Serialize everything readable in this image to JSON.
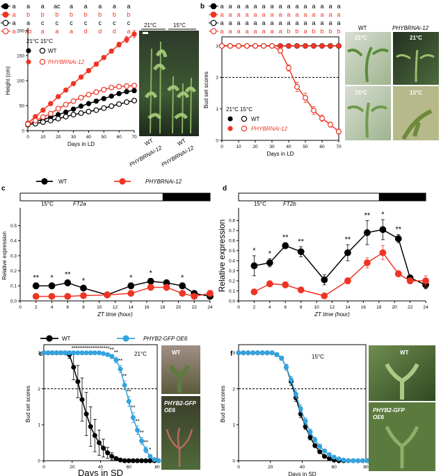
{
  "colors": {
    "black": "#000000",
    "red": "#ee3524",
    "blue": "#35a3de",
    "gray": "#666666"
  },
  "photos": {
    "a": {
      "left_temp": "21°C",
      "right_temp": "15°C",
      "caption_wt1": "WT",
      "caption_line1": "PHYBRNAi-12",
      "caption_wt2": "WT",
      "caption_line2": "PHYBRNAi-12"
    },
    "b": {
      "col1": "WT",
      "col2": "PHYBRNAi-12",
      "t_top_left": "21°C",
      "t_top_right": "21°C",
      "t_bottom_left": "15°C",
      "t_bottom_right": "15°C"
    },
    "e": {
      "top": "WT",
      "bottom_line1": "PHYB2-GFP",
      "bottom_line2": "OE6"
    },
    "f": {
      "top": "WT",
      "bottom_line1": "PHYB2-GFP",
      "bottom_line2": "OE6"
    }
  },
  "chart_data": [
    {
      "id": "a",
      "panel_label": "a",
      "type": "line",
      "xlabel": "Days in LD",
      "ylabel": "Height (cm)",
      "xlim": [
        0,
        70
      ],
      "ylim": [
        0,
        200
      ],
      "xticks": [
        0,
        10,
        20,
        30,
        40,
        50,
        60,
        70
      ],
      "yticks": [
        0,
        50,
        100,
        150,
        200
      ],
      "legend": {
        "header": "21°C 15°C",
        "entries": [
          "WT",
          "PHYBRNAi-12"
        ]
      },
      "letter_rows": [
        [
          "a",
          "a",
          "a",
          "ac",
          "a",
          "a",
          "a",
          "a",
          "a"
        ],
        [
          "a",
          "b",
          "b",
          "b",
          "b",
          "b",
          "b",
          "b",
          "b"
        ],
        [
          "a",
          "a",
          "c",
          "c",
          "c",
          "c",
          "c",
          "c",
          "c"
        ],
        [
          "a",
          "ab",
          "a",
          "a",
          "a",
          "d",
          "d",
          "d",
          "a"
        ]
      ],
      "x": [
        0,
        5,
        10,
        15,
        20,
        25,
        30,
        35,
        40,
        45,
        50,
        55,
        60,
        65,
        70
      ],
      "series": [
        {
          "name": "WT 21°C",
          "color": "black",
          "fill": true,
          "values": [
            14,
            18,
            22,
            27,
            32,
            37,
            43,
            49,
            54,
            59,
            64,
            69,
            74,
            78,
            80
          ],
          "err": [
            2,
            2,
            2,
            2,
            2,
            2,
            3,
            3,
            3,
            3,
            3,
            3,
            3,
            3,
            4
          ]
        },
        {
          "name": "WT 15°C",
          "color": "black",
          "fill": false,
          "values": [
            12,
            14,
            17,
            20,
            24,
            28,
            32,
            35,
            38,
            41,
            45,
            49,
            53,
            57,
            60
          ],
          "err": [
            2,
            2,
            2,
            2,
            2,
            2,
            2,
            2,
            2,
            3,
            3,
            3,
            3,
            3,
            3
          ]
        },
        {
          "name": "PHYBRNAi-12 21°C",
          "color": "red",
          "fill": true,
          "values": [
            15,
            28,
            41,
            54,
            68,
            81,
            94,
            107,
            120,
            133,
            146,
            159,
            172,
            182,
            193
          ],
          "err": [
            2,
            2,
            3,
            3,
            3,
            3,
            3,
            4,
            4,
            4,
            4,
            4,
            5,
            6,
            7
          ]
        },
        {
          "name": "PHYBRNAi-12 15°C",
          "color": "red",
          "fill": false,
          "values": [
            13,
            20,
            27,
            34,
            44,
            52,
            59,
            66,
            72,
            77,
            82,
            86,
            88,
            89,
            90
          ],
          "err": [
            2,
            2,
            3,
            3,
            3,
            3,
            3,
            4,
            4,
            4,
            4,
            4,
            4,
            4,
            4
          ]
        }
      ]
    },
    {
      "id": "b",
      "panel_label": "b",
      "type": "line",
      "xlabel": "Days in LD",
      "ylabel": "Bud set scores",
      "xlim": [
        0,
        70
      ],
      "ylim": [
        0,
        3.2
      ],
      "xticks": [
        0,
        10,
        20,
        30,
        40,
        50,
        60,
        70
      ],
      "yticks": [
        0,
        1,
        2,
        3
      ],
      "threshold": 2,
      "legend": {
        "header": "21°C 15°C",
        "entries": [
          "WT",
          "PHYBRNAi-12"
        ]
      },
      "letter_rows": [
        [
          "a",
          "a",
          "a",
          "a",
          "a",
          "a",
          "a",
          "a",
          "a",
          "a",
          "a",
          "a",
          "a",
          "a",
          "a"
        ],
        [
          "a",
          "a",
          "a",
          "a",
          "a",
          "a",
          "a",
          "a",
          "a",
          "a",
          "a",
          "a",
          "a",
          "a",
          "a"
        ],
        [
          "a",
          "a",
          "a",
          "a",
          "a",
          "a",
          "a",
          "a",
          "a",
          "a",
          "a",
          "a",
          "a",
          "a",
          "a"
        ],
        [
          "a",
          "a",
          "a",
          "a",
          "a",
          "a",
          "a",
          "a",
          "b",
          "b",
          "a",
          "b",
          "b",
          "b",
          "b"
        ]
      ],
      "x": [
        0,
        5,
        10,
        15,
        20,
        25,
        30,
        35,
        40,
        45,
        50,
        55,
        60,
        65,
        70
      ],
      "series": [
        {
          "name": "WT 21°C",
          "color": "black",
          "fill": true,
          "values": [
            3,
            3,
            3,
            3,
            3,
            3,
            3,
            3,
            3,
            3,
            3,
            3,
            3,
            3,
            3
          ],
          "err": [
            0,
            0,
            0,
            0,
            0,
            0,
            0,
            0,
            0,
            0,
            0,
            0,
            0,
            0,
            0
          ]
        },
        {
          "name": "WT 15°C",
          "color": "black",
          "fill": false,
          "values": [
            3,
            3,
            3,
            3,
            3,
            3,
            3,
            3,
            3,
            3,
            3,
            3,
            3,
            3,
            3
          ],
          "err": [
            0,
            0,
            0,
            0,
            0,
            0,
            0,
            0,
            0,
            0,
            0,
            0,
            0,
            0,
            0
          ]
        },
        {
          "name": "PHYBRNAi-12 21°C",
          "color": "red",
          "fill": true,
          "values": [
            3,
            3,
            3,
            3,
            3,
            3,
            3,
            3,
            3,
            3,
            3,
            3,
            3,
            3,
            3
          ],
          "err": [
            0,
            0,
            0,
            0,
            0,
            0,
            0,
            0,
            0,
            0,
            0,
            0,
            0,
            0,
            0
          ]
        },
        {
          "name": "PHYBRNAi-12 15°C",
          "color": "red",
          "fill": false,
          "values": [
            3,
            3,
            3,
            3,
            3,
            3,
            3,
            2.85,
            2.3,
            1.7,
            1.35,
            0.95,
            0.7,
            0.5,
            0.28
          ],
          "err": [
            0,
            0,
            0,
            0,
            0,
            0,
            0,
            0.08,
            0.1,
            0.15,
            0.15,
            0.12,
            0.1,
            0.08,
            0.08
          ]
        }
      ]
    },
    {
      "id": "c",
      "panel_label": "c",
      "type": "line",
      "xlabel": "ZT time (hour)",
      "ylabel": "Relative expression",
      "title_left": "15°C",
      "gene": "FT2a",
      "xlim": [
        0,
        24
      ],
      "ylim": [
        0,
        0.6
      ],
      "xticks": [
        0,
        2,
        4,
        6,
        8,
        10,
        12,
        14,
        16,
        18,
        20,
        22,
        24
      ],
      "yticks": [
        0.0,
        0.1,
        0.2,
        0.3,
        0.4,
        0.5
      ],
      "light_end": 18,
      "legend": {
        "entries": [
          "WT",
          "PHYBRNAi-12"
        ]
      },
      "x": [
        2,
        4,
        6,
        8,
        11,
        14,
        16.5,
        18.5,
        20.5,
        22,
        24
      ],
      "significance": [
        "**",
        "*",
        "**",
        "*",
        "",
        "*",
        "*",
        "",
        "*",
        "",
        ""
      ],
      "series": [
        {
          "name": "WT",
          "color": "black",
          "fill": true,
          "values": [
            0.1,
            0.1,
            0.12,
            0.085,
            0.04,
            0.1,
            0.13,
            0.12,
            0.1,
            0.05,
            0.03
          ],
          "err": [
            0.02,
            0.02,
            0.02,
            0.015,
            0.01,
            0.02,
            0.02,
            0.02,
            0.02,
            0.01,
            0.01
          ]
        },
        {
          "name": "PHYBRNAi-12",
          "color": "red",
          "fill": true,
          "values": [
            0.03,
            0.03,
            0.03,
            0.035,
            0.04,
            0.05,
            0.09,
            0.09,
            0.05,
            0.03,
            0.05
          ],
          "err": [
            0.01,
            0.01,
            0.01,
            0.01,
            0.01,
            0.01,
            0.02,
            0.02,
            0.01,
            0.01,
            0.02
          ]
        }
      ]
    },
    {
      "id": "d",
      "panel_label": "d",
      "type": "line",
      "xlabel": "ZT time (hour)",
      "ylabel": "Relative expression",
      "title_left": "15°C",
      "gene": "FT2b",
      "xlim": [
        0,
        24
      ],
      "ylim": [
        0,
        0.9
      ],
      "xticks": [
        0,
        2,
        4,
        6,
        8,
        10,
        12,
        14,
        16,
        18,
        20,
        22,
        24
      ],
      "yticks": [
        0.0,
        0.1,
        0.2,
        0.3,
        0.4,
        0.5,
        0.6,
        0.7,
        0.8
      ],
      "light_end": 18,
      "x": [
        2,
        4,
        6,
        8,
        11,
        14,
        16.5,
        18.5,
        20.5,
        22,
        24
      ],
      "significance": [
        "*",
        "*",
        "**",
        "**",
        "",
        "**",
        "**",
        "*",
        "**",
        "",
        ""
      ],
      "series": [
        {
          "name": "WT",
          "color": "black",
          "fill": true,
          "values": [
            0.35,
            0.38,
            0.55,
            0.49,
            0.21,
            0.48,
            0.68,
            0.71,
            0.62,
            0.23,
            0.16
          ],
          "err": [
            0.1,
            0.04,
            0.03,
            0.05,
            0.05,
            0.08,
            0.12,
            0.1,
            0.04,
            0.02,
            0.04
          ]
        },
        {
          "name": "PHYBRNAi-12",
          "color": "red",
          "fill": true,
          "values": [
            0.09,
            0.17,
            0.16,
            0.11,
            0.05,
            0.2,
            0.38,
            0.48,
            0.27,
            0.2,
            0.2
          ],
          "err": [
            0.01,
            0.03,
            0.03,
            0.01,
            0.01,
            0.03,
            0.05,
            0.07,
            0.03,
            0.03,
            0.05
          ]
        }
      ]
    },
    {
      "id": "e",
      "panel_label": "e",
      "type": "line",
      "xlabel": "Days in SD",
      "ylabel": "Bud set scores",
      "title_right": "21°C",
      "xlim": [
        0,
        80
      ],
      "ylim": [
        0,
        3.15
      ],
      "xticks": [
        0,
        20,
        40,
        60,
        80
      ],
      "yticks": [
        0,
        1,
        2,
        3
      ],
      "threshold": 2,
      "legend": {
        "entries": [
          "WT",
          "PHYB2-GFP OE6"
        ]
      },
      "x": [
        0,
        3,
        6,
        9,
        12,
        15,
        18,
        21,
        24,
        27,
        30,
        33,
        36,
        39,
        42,
        45,
        48,
        51,
        54,
        57,
        60,
        63,
        66,
        69,
        72,
        75,
        78,
        81
      ],
      "significance": [
        "",
        "",
        "",
        "",
        "",
        "",
        "",
        "**",
        "**",
        "**",
        "**",
        "**",
        "**",
        "**",
        "**",
        "**",
        "**",
        "**",
        "**",
        "**",
        "**",
        "**",
        "**",
        "**",
        "**",
        "*",
        "",
        ""
      ],
      "series": [
        {
          "name": "WT",
          "color": "black",
          "fill": true,
          "values": [
            3,
            3,
            3,
            3,
            3,
            3,
            2.95,
            2.6,
            2.2,
            1.7,
            1.3,
            0.95,
            0.7,
            0.5,
            0.35,
            0.22,
            0.12,
            0.06,
            0.02,
            0,
            0,
            0,
            0,
            0,
            0,
            0,
            0,
            0
          ],
          "err": [
            0,
            0,
            0,
            0,
            0,
            0,
            0.1,
            0.35,
            0.45,
            0.6,
            0.6,
            0.55,
            0.45,
            0.35,
            0.25,
            0.15,
            0.1,
            0.05,
            0.02,
            0,
            0,
            0,
            0,
            0,
            0,
            0,
            0,
            0
          ]
        },
        {
          "name": "PHYB2-GFP OE6",
          "color": "blue",
          "fill": true,
          "values": [
            3,
            3,
            3,
            3,
            3,
            3,
            3,
            3,
            3,
            3,
            3,
            3,
            3,
            3,
            2.98,
            2.95,
            2.9,
            2.8,
            2.55,
            2.1,
            1.65,
            1.2,
            0.85,
            0.55,
            0.3,
            0.12,
            0.03,
            0
          ],
          "err": [
            0,
            0,
            0,
            0,
            0,
            0,
            0,
            0,
            0,
            0,
            0,
            0,
            0,
            0,
            0.02,
            0.04,
            0.06,
            0.08,
            0.1,
            0.12,
            0.14,
            0.14,
            0.12,
            0.1,
            0.08,
            0.05,
            0.02,
            0
          ]
        }
      ]
    },
    {
      "id": "f",
      "panel_label": "f",
      "type": "line",
      "xlabel": "Days in SD",
      "ylabel": "Bud set scores",
      "title_left": "15°C",
      "xlim": [
        0,
        80
      ],
      "ylim": [
        0,
        3.15
      ],
      "xticks": [
        0,
        20,
        40,
        60,
        80
      ],
      "yticks": [
        0,
        1,
        2,
        3
      ],
      "threshold": 2,
      "x": [
        0,
        3,
        6,
        9,
        12,
        15,
        18,
        21,
        24,
        27,
        30,
        33,
        36,
        39,
        42,
        45,
        48,
        51,
        54,
        57,
        60,
        63,
        66,
        69,
        72,
        75,
        78,
        81
      ],
      "series": [
        {
          "name": "WT",
          "color": "black",
          "fill": true,
          "values": [
            3,
            3,
            3,
            3,
            3,
            3,
            3,
            3,
            2.95,
            2.85,
            2.6,
            2.2,
            1.75,
            1.3,
            0.95,
            0.65,
            0.42,
            0.25,
            0.12,
            0.06,
            0.02,
            0,
            0,
            0,
            0,
            0,
            0,
            0
          ],
          "err": [
            0,
            0,
            0,
            0,
            0,
            0,
            0,
            0,
            0.05,
            0.06,
            0.08,
            0.1,
            0.1,
            0.1,
            0.08,
            0.07,
            0.05,
            0.04,
            0.03,
            0.02,
            0.01,
            0,
            0,
            0,
            0,
            0,
            0,
            0
          ]
        },
        {
          "name": "PHYB2-GFP OE6",
          "color": "blue",
          "fill": true,
          "values": [
            3,
            3,
            3,
            3,
            3,
            3,
            3,
            3,
            2.95,
            2.85,
            2.6,
            2.25,
            1.85,
            1.45,
            1.1,
            0.8,
            0.58,
            0.4,
            0.27,
            0.17,
            0.1,
            0.05,
            0.02,
            0,
            0,
            0,
            0,
            0
          ],
          "err": [
            0,
            0,
            0,
            0,
            0,
            0,
            0,
            0,
            0.05,
            0.06,
            0.08,
            0.1,
            0.1,
            0.1,
            0.09,
            0.08,
            0.07,
            0.06,
            0.05,
            0.04,
            0.03,
            0.02,
            0.01,
            0,
            0,
            0,
            0,
            0
          ]
        }
      ]
    }
  ]
}
